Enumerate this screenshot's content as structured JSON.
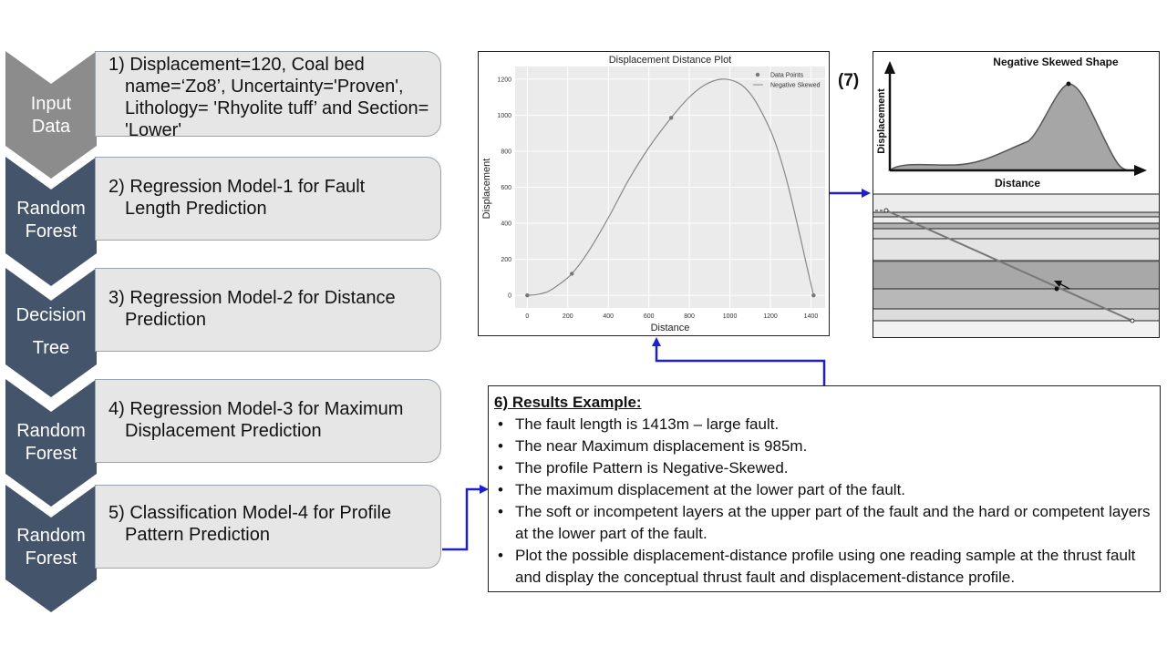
{
  "chevrons": [
    {
      "label_lines": [
        "Input",
        "Data"
      ],
      "color": "#8c8c8c"
    },
    {
      "label_lines": [
        "Random",
        "Forest"
      ],
      "color": "#44546a"
    },
    {
      "label_lines": [
        "Decision",
        "Tree"
      ],
      "color": "#44546a"
    },
    {
      "label_lines": [
        "Random",
        "Forest"
      ],
      "color": "#44546a"
    },
    {
      "label_lines": [
        "Random",
        "Forest"
      ],
      "color": "#44546a"
    }
  ],
  "steps": [
    {
      "lines": [
        "1) Displacement=120, Coal bed",
        "name=‘Zo8’, Uncertainty='Proven',",
        "Lithology= 'Rhyolite tuff’ and Section=",
        "'Lower'"
      ]
    },
    {
      "lines": [
        "2) Regression Model-1 for Fault",
        "Length Prediction"
      ]
    },
    {
      "lines": [
        "3) Regression Model-2 for Distance",
        "Prediction"
      ]
    },
    {
      "lines": [
        "4) Regression Model-3 for Maximum",
        "Displacement Prediction"
      ]
    },
    {
      "lines": [
        "5) Classification Model-4 for Profile",
        "Pattern Prediction"
      ]
    }
  ],
  "results": {
    "title": "6) Results Example:",
    "items": [
      "The fault length is 1413m – large fault.",
      "The near Maximum displacement is 985m.",
      "The profile Pattern is Negative-Skewed.",
      "The maximum displacement at the lower part of the fault.",
      "The soft or incompetent layers at the upper part of the fault and the hard or competent layers at the lower part of the fault.",
      "Plot the possible displacement-distance profile using one reading sample at the thrust fault and display the conceptual thrust fault and displacement-distance profile."
    ]
  },
  "figure7_label": "(7)",
  "skewed": {
    "title": "Negative Skewed Shape",
    "xlabel": "Distance",
    "ylabel": "Displacement"
  },
  "chart_data": {
    "type": "line",
    "title": "Displacement Distance Plot",
    "xlabel": "Distance",
    "ylabel": "Displacement",
    "xlim": [
      -60,
      1470
    ],
    "ylim": [
      -70,
      1270
    ],
    "x_ticks": [
      0,
      200,
      400,
      600,
      800,
      1000,
      1200,
      1400
    ],
    "y_ticks": [
      0,
      200,
      400,
      600,
      800,
      1000,
      1200
    ],
    "grid": true,
    "legend_position": "top-right",
    "series": [
      {
        "name": "Data Points",
        "kind": "scatter",
        "x": [
          0,
          220,
          710,
          1413
        ],
        "y": [
          0,
          120,
          985,
          0
        ]
      },
      {
        "name": "Negative Skewed",
        "kind": "line",
        "x": [
          0,
          50,
          100,
          150,
          220,
          300,
          400,
          500,
          600,
          710,
          800,
          880,
          960,
          1040,
          1100,
          1160,
          1220,
          1280,
          1340,
          1380,
          1413
        ],
        "y": [
          0,
          5,
          20,
          55,
          120,
          240,
          430,
          640,
          820,
          985,
          1100,
          1170,
          1200,
          1180,
          1120,
          1010,
          860,
          640,
          360,
          160,
          0
        ]
      }
    ]
  }
}
